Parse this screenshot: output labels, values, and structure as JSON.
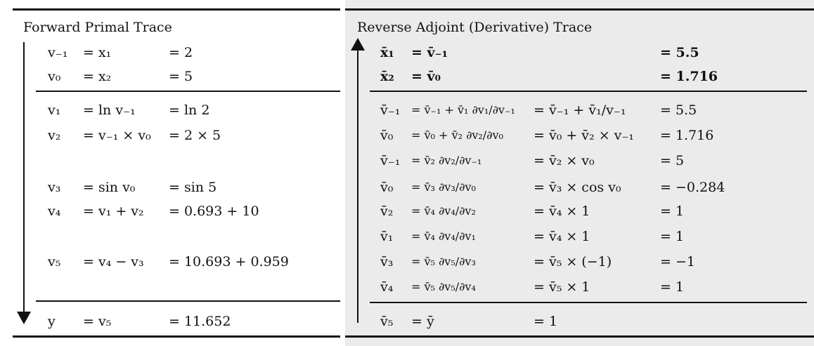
{
  "forward": {
    "title": "Forward Primal Trace",
    "rows": [
      {
        "a": "v₋₁",
        "b": "= x₁",
        "c": "= 2"
      },
      {
        "a": "v₀",
        "b": "= x₂",
        "c": "= 5"
      },
      {
        "a": "v₁",
        "b": "= ln v₋₁",
        "c": "= ln 2"
      },
      {
        "a": "v₂",
        "b": "= v₋₁ × v₀",
        "c": "= 2 × 5"
      },
      {
        "a": "v₃",
        "b": "= sin v₀",
        "c": "= sin 5"
      },
      {
        "a": "v₄",
        "b": "= v₁ + v₂",
        "c": "= 0.693 + 10"
      },
      {
        "a": "v₅",
        "b": "= v₄ − v₃",
        "c": "= 10.693 + 0.959"
      },
      {
        "a": "y",
        "b": "= v₅",
        "c": "= 11.652"
      }
    ]
  },
  "reverse": {
    "title": "Reverse Adjoint (Derivative) Trace",
    "rows": [
      {
        "a": "x̄₁",
        "b": "= v̄₋₁",
        "c": "",
        "d": "= 5.5"
      },
      {
        "a": "x̄₂",
        "b": "= v̄₀",
        "c": "",
        "d": "= 1.716"
      },
      {
        "a": "v̄₋₁",
        "b": "= v̄₋₁ + v̄₁ ∂v₁/∂v₋₁",
        "c": "= v̄₋₁ + v̄₁/v₋₁",
        "d": "= 5.5"
      },
      {
        "a": "v̄₀",
        "b": "= v̄₀ + v̄₂ ∂v₂/∂v₀",
        "c": "= v̄₀ + v̄₂ × v₋₁",
        "d": "= 1.716"
      },
      {
        "a": "v̄₋₁",
        "b": "= v̄₂ ∂v₂/∂v₋₁",
        "c": "= v̄₂ × v₀",
        "d": "= 5"
      },
      {
        "a": "v̄₀",
        "b": "= v̄₃ ∂v₃/∂v₀",
        "c": "= v̄₃ × cos v₀",
        "d": "= −0.284"
      },
      {
        "a": "v̄₂",
        "b": "= v̄₄ ∂v₄/∂v₂",
        "c": "= v̄₄ × 1",
        "d": "= 1"
      },
      {
        "a": "v̄₁",
        "b": "= v̄₄ ∂v₄/∂v₁",
        "c": "= v̄₄ × 1",
        "d": "= 1"
      },
      {
        "a": "v̄₃",
        "b": "= v̄₅ ∂v₅/∂v₃",
        "c": "= v̄₅ × (−1)",
        "d": "= −1"
      },
      {
        "a": "v̄₄",
        "b": "= v̄₅ ∂v₅/∂v₄",
        "c": "= v̄₅ × 1",
        "d": "= 1"
      },
      {
        "a": "v̄₅",
        "b": "= ȳ",
        "c": "= 1",
        "d": ""
      }
    ]
  }
}
